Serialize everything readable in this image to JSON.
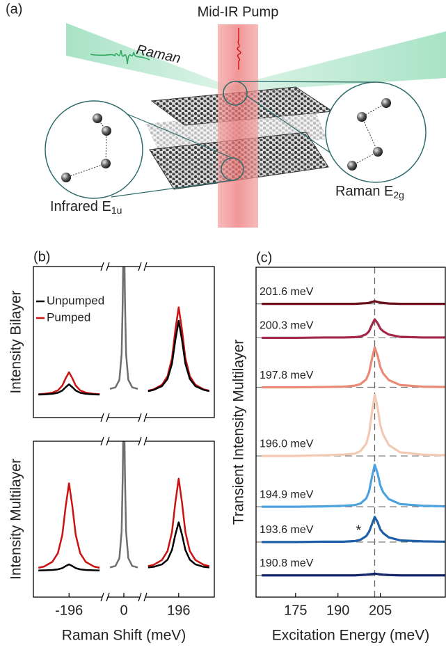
{
  "figure_a": {
    "panel_label": "(a)",
    "pump_label": "Mid-IR Pump",
    "raman_label": "Raman",
    "infrared_label": {
      "text": "Infrared E",
      "subscript": "1u"
    },
    "raman_mode_label": {
      "text": "Raman E",
      "subscript": "2g"
    }
  },
  "chart_data": [
    {
      "type": "line",
      "panel_label": "(b)",
      "ylabel": "Intensity Bilayer",
      "xlim_segments": [
        [
          -260,
          -135
        ],
        [
          -30,
          30
        ],
        [
          135,
          260
        ]
      ],
      "ylim": [
        0,
        1
      ],
      "legend": "upper left",
      "series": [
        {
          "name": "Unpumped",
          "color": "#000000",
          "x": [
            -251,
            -241,
            -226,
            -216,
            -208,
            -202,
            -196,
            -190,
            -184,
            -176,
            -166,
            -151,
            -141,
            null,
            141,
            151,
            166,
            176,
            184,
            190,
            196,
            202,
            208,
            216,
            226,
            241,
            251
          ],
          "values": [
            0.152,
            0.153,
            0.157,
            0.164,
            0.179,
            0.201,
            0.22,
            0.201,
            0.179,
            0.164,
            0.157,
            0.153,
            0.152,
            null,
            0.175,
            0.183,
            0.208,
            0.256,
            0.357,
            0.513,
            0.64,
            0.513,
            0.357,
            0.256,
            0.208,
            0.183,
            0.175
          ]
        },
        {
          "name": "Pumped",
          "color": "#cc1111",
          "x": [
            -251,
            -241,
            -226,
            -216,
            -208,
            -202,
            -196,
            -190,
            -184,
            -176,
            -166,
            -151,
            -141,
            null,
            141,
            151,
            166,
            176,
            184,
            190,
            196,
            202,
            208,
            216,
            226,
            241,
            251
          ],
          "values": [
            0.155,
            0.157,
            0.165,
            0.18,
            0.212,
            0.26,
            0.3,
            0.26,
            0.212,
            0.18,
            0.165,
            0.157,
            0.155,
            null,
            0.178,
            0.187,
            0.217,
            0.274,
            0.394,
            0.579,
            0.73,
            0.579,
            0.394,
            0.274,
            0.217,
            0.187,
            0.178
          ]
        },
        {
          "color": "#6e6e6e",
          "x": [
            -25,
            -15,
            -8,
            -4,
            -2,
            0,
            2,
            4,
            8,
            15,
            25
          ],
          "values": [
            0.19,
            0.2,
            0.25,
            0.42,
            0.78,
            1.38,
            0.78,
            0.42,
            0.25,
            0.2,
            0.19
          ]
        }
      ]
    },
    {
      "type": "line",
      "ylabel": "Intensity Multilayer",
      "xlabel": "Raman Shift (meV)",
      "xlim_segments": [
        [
          -260,
          -135
        ],
        [
          -30,
          30
        ],
        [
          135,
          260
        ]
      ],
      "ylim": [
        0,
        1
      ],
      "xticks": [
        -196,
        0,
        196
      ],
      "series": [
        {
          "name": "Unpumped",
          "color": "#000000",
          "x": [
            -251,
            -241,
            -226,
            -216,
            -208,
            -202,
            -196,
            -190,
            -184,
            -176,
            -166,
            -151,
            -141,
            null,
            141,
            151,
            166,
            176,
            184,
            190,
            196,
            202,
            208,
            216,
            226,
            241,
            251
          ],
          "values": [
            0.171,
            0.172,
            0.174,
            0.178,
            0.186,
            0.199,
            0.21,
            0.199,
            0.186,
            0.178,
            0.174,
            0.172,
            0.171,
            null,
            0.19,
            0.194,
            0.21,
            0.24,
            0.303,
            0.4,
            0.48,
            0.4,
            0.303,
            0.24,
            0.21,
            0.194,
            0.19
          ]
        },
        {
          "name": "Pumped",
          "color": "#cc1111",
          "x": [
            -251,
            -241,
            -226,
            -216,
            -208,
            -202,
            -196,
            -190,
            -184,
            -176,
            -166,
            -151,
            -141,
            null,
            141,
            151,
            166,
            176,
            184,
            190,
            196,
            202,
            208,
            216,
            226,
            241,
            251
          ],
          "values": [
            0.188,
            0.196,
            0.226,
            0.282,
            0.4,
            0.582,
            0.73,
            0.582,
            0.4,
            0.282,
            0.226,
            0.196,
            0.188,
            null,
            0.199,
            0.207,
            0.238,
            0.296,
            0.418,
            0.606,
            0.76,
            0.606,
            0.418,
            0.296,
            0.238,
            0.207,
            0.199
          ]
        },
        {
          "color": "#6e6e6e",
          "x": [
            -25,
            -15,
            -8,
            -4,
            -2,
            0,
            2,
            4,
            8,
            15,
            25
          ],
          "values": [
            0.19,
            0.2,
            0.25,
            0.42,
            0.78,
            1.38,
            0.78,
            0.42,
            0.25,
            0.2,
            0.19
          ]
        }
      ]
    },
    {
      "type": "line",
      "panel_label": "(c)",
      "xlabel": "Excitation Energy (meV)",
      "ylabel": "Transient Intensity Multilayer",
      "xlim": [
        161,
        228
      ],
      "xticks": [
        175,
        190,
        205
      ],
      "ylim": [
        0,
        10
      ],
      "reference_line_x": 203,
      "x": [
        163,
        175,
        185,
        192,
        196,
        198,
        200,
        201,
        202,
        203,
        204,
        205,
        206,
        208,
        212,
        220,
        228
      ],
      "series": [
        {
          "name": "201.6 meV",
          "color": "#6b0f1a",
          "values": [
            8.89,
            8.89,
            8.89,
            8.89,
            8.89,
            8.9,
            8.91,
            8.92,
            8.95,
            8.97,
            8.95,
            8.93,
            8.92,
            8.9,
            8.89,
            8.89,
            8.89
          ]
        },
        {
          "name": "200.3 meV",
          "color": "#a4284a",
          "values": [
            7.86,
            7.86,
            7.87,
            7.87,
            7.88,
            7.9,
            7.97,
            8.06,
            8.25,
            8.42,
            8.31,
            8.14,
            8.06,
            7.96,
            7.89,
            7.87,
            7.87
          ]
        },
        {
          "name": "197.8 meV",
          "color": "#e98a77",
          "values": [
            6.36,
            6.36,
            6.37,
            6.38,
            6.41,
            6.46,
            6.6,
            6.8,
            7.21,
            7.57,
            7.33,
            6.97,
            6.78,
            6.58,
            6.43,
            6.38,
            6.37
          ]
        },
        {
          "name": "196.0 meV",
          "color": "#f3c9b1",
          "values": [
            4.28,
            4.28,
            4.3,
            4.32,
            4.35,
            4.43,
            4.65,
            4.95,
            5.58,
            6.13,
            5.76,
            5.21,
            4.93,
            4.61,
            4.39,
            4.32,
            4.3
          ]
        },
        {
          "name": "194.9 meV",
          "color": "#4da3e0",
          "values": [
            2.74,
            2.74,
            2.75,
            2.77,
            2.79,
            2.84,
            2.99,
            3.2,
            3.63,
            4.01,
            3.76,
            3.38,
            3.18,
            2.97,
            2.82,
            2.77,
            2.75
          ]
        },
        {
          "name": "193.6 meV",
          "color": "#1f5fa8",
          "values": [
            1.67,
            1.67,
            1.68,
            1.68,
            1.7,
            1.74,
            1.85,
            1.98,
            2.2,
            2.43,
            2.28,
            2.05,
            1.94,
            1.81,
            1.72,
            1.69,
            1.68
          ]
        },
        {
          "name": "190.8 meV",
          "color": "#13266b",
          "values": [
            0.66,
            0.66,
            0.66,
            0.66,
            0.66,
            0.67,
            0.68,
            0.69,
            0.7,
            0.71,
            0.7,
            0.69,
            0.68,
            0.67,
            0.66,
            0.66,
            0.66
          ]
        }
      ],
      "annotations": [
        {
          "text": "*",
          "x": 197.3,
          "y": 2.0
        }
      ]
    }
  ]
}
